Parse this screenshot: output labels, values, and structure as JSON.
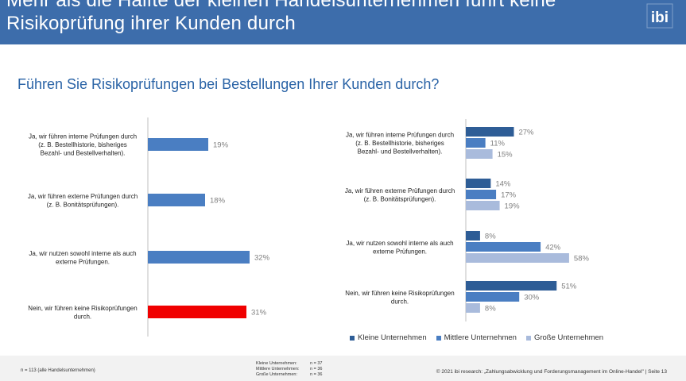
{
  "header": {
    "title_line1": "Mehr als die Hälfte der kleinen Handelsunternehmen führt keine",
    "title_line2": "Risikoprüfung ihrer Kunden durch",
    "logo_text": "ibi",
    "bg_color": "#3d6dab"
  },
  "subtitle": "Führen Sie Risikoprüfungen bei Bestellungen Ihrer Kunden durch?",
  "chart_data": [
    {
      "type": "bar",
      "orientation": "horizontal",
      "categories": [
        "Ja, wir führen interne Prüfungen durch (z. B. Bestellhistorie, bisheriges Bezahl- und Bestellverhalten).",
        "Ja, wir führen externe Prüfungen durch (z. B. Bonitätsprüfungen).",
        "Ja, wir nutzen sowohl interne als auch externe Prüfungen.",
        "Nein, wir führen keine Risikoprüfungen durch."
      ],
      "category_lines": [
        [
          "Ja, wir führen interne Prüfungen durch",
          "(z. B. Bestellhistorie, bisheriges",
          "Bezahl- und Bestellverhalten)."
        ],
        [
          "Ja, wir führen externe Prüfungen durch",
          "(z. B. Bonitätsprüfungen)."
        ],
        [
          "Ja, wir nutzen sowohl interne als auch",
          "externe Prüfungen."
        ],
        [
          "Nein, wir führen keine Risikoprüfungen",
          "durch."
        ]
      ],
      "values": [
        19,
        18,
        32,
        31
      ],
      "value_labels": [
        "19%",
        "18%",
        "32%",
        "31%"
      ],
      "colors": [
        "#4a7ec2",
        "#4a7ec2",
        "#4a7ec2",
        "#f00000"
      ],
      "xlim": [
        0,
        100
      ]
    },
    {
      "type": "bar",
      "orientation": "horizontal",
      "categories": [
        "Ja, wir führen interne Prüfungen durch (z. B. Bestellhistorie, bisheriges Bezahl- und Bestellverhalten).",
        "Ja, wir führen externe Prüfungen durch (z. B. Bonitätsprüfungen).",
        "Ja, wir nutzen sowohl interne als auch externe Prüfungen.",
        "Nein, wir führen keine Risikoprüfungen durch."
      ],
      "category_lines": [
        [
          "Ja, wir führen interne Prüfungen durch",
          "(z. B. Bestellhistorie, bisheriges",
          "Bezahl- und Bestellverhalten)."
        ],
        [
          "Ja, wir führen externe Prüfungen durch",
          "(z. B. Bonitätsprüfungen)."
        ],
        [
          "Ja, wir nutzen sowohl interne als auch",
          "externe Prüfungen."
        ],
        [
          "Nein, wir führen keine Risikoprüfungen",
          "durch."
        ]
      ],
      "series": [
        {
          "name": "Kleine Unternehmen",
          "values": [
            27,
            14,
            8,
            51
          ],
          "labels": [
            "27%",
            "14%",
            "8%",
            "51%"
          ],
          "color": "#2e5d96"
        },
        {
          "name": "Mittlere Unternehmen",
          "values": [
            11,
            17,
            42,
            30
          ],
          "labels": [
            "11%",
            "17%",
            "42%",
            "30%"
          ],
          "color": "#4a7ec2"
        },
        {
          "name": "Große Unternehmen",
          "values": [
            15,
            19,
            58,
            8
          ],
          "labels": [
            "15%",
            "19%",
            "58%",
            "8%"
          ],
          "color": "#a9bbdc"
        }
      ],
      "legend": "bottom",
      "xlim": [
        0,
        100
      ]
    }
  ],
  "footer": {
    "footnote": "n = 113 (alle Handelsunternehmen)",
    "sample": [
      {
        "label": "Kleine Unternehmen:",
        "value": "n = 37"
      },
      {
        "label": "Mittlere Unternehmen:",
        "value": "n = 36"
      },
      {
        "label": "Große Unternehmen:",
        "value": "n = 36"
      }
    ],
    "source": "© 2021 ibi research: „Zahlungsabwicklung und Forderungsmanagement im Online-Handel\" | Seite 13"
  }
}
